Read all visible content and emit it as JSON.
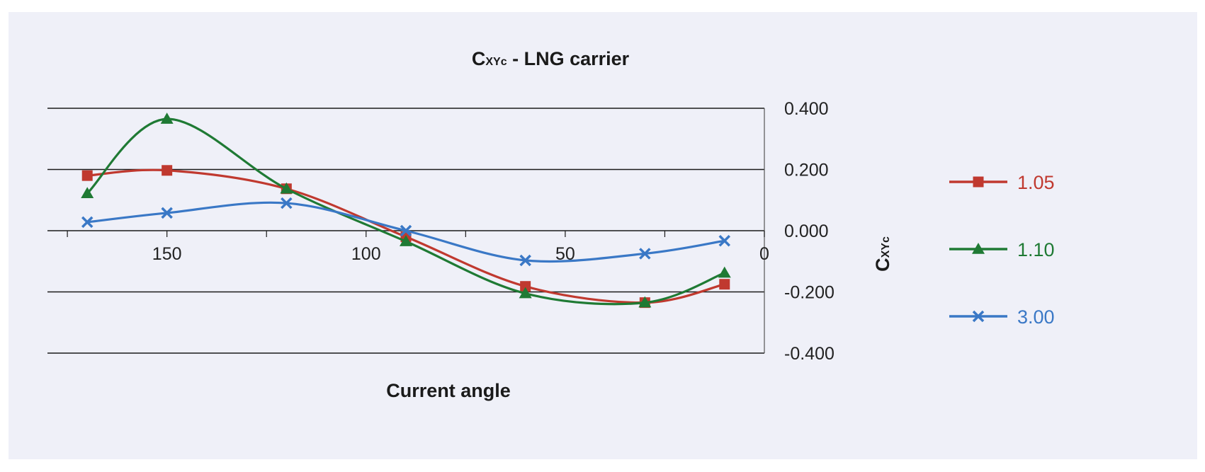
{
  "chart_data": {
    "type": "line",
    "title_main": "C",
    "title_sub": "XYc",
    "title_rest": " - LNG carrier",
    "xlabel": "Current angle",
    "ylabel_main": "C",
    "ylabel_sub": "XYc",
    "x_reversed": true,
    "xlim": [
      180,
      0
    ],
    "ylim": [
      -0.4,
      0.4
    ],
    "x_ticks": [
      150,
      100,
      50,
      0
    ],
    "y_ticks": [
      "0.400",
      "0.200",
      "0.000",
      "-0.200",
      "-0.400"
    ],
    "y_tick_values": [
      0.4,
      0.2,
      0,
      -0.2,
      -0.4
    ],
    "grid": "horizontal",
    "legend_position": "right",
    "smooth": true,
    "x": [
      170,
      150,
      120,
      90,
      60,
      30,
      10
    ],
    "series": [
      {
        "name": "1.05",
        "color": "#c0392f",
        "marker": "square",
        "values": [
          0.18,
          0.197,
          0.137,
          -0.02,
          -0.182,
          -0.235,
          -0.175
        ]
      },
      {
        "name": "1.10",
        "color": "#1f7a34",
        "marker": "triangle",
        "values": [
          0.122,
          0.365,
          0.137,
          -0.035,
          -0.205,
          -0.235,
          -0.138
        ]
      },
      {
        "name": "3.00",
        "color": "#3a78c6",
        "marker": "x",
        "values": [
          0.028,
          0.058,
          0.09,
          0.0,
          -0.097,
          -0.075,
          -0.033
        ]
      }
    ]
  }
}
